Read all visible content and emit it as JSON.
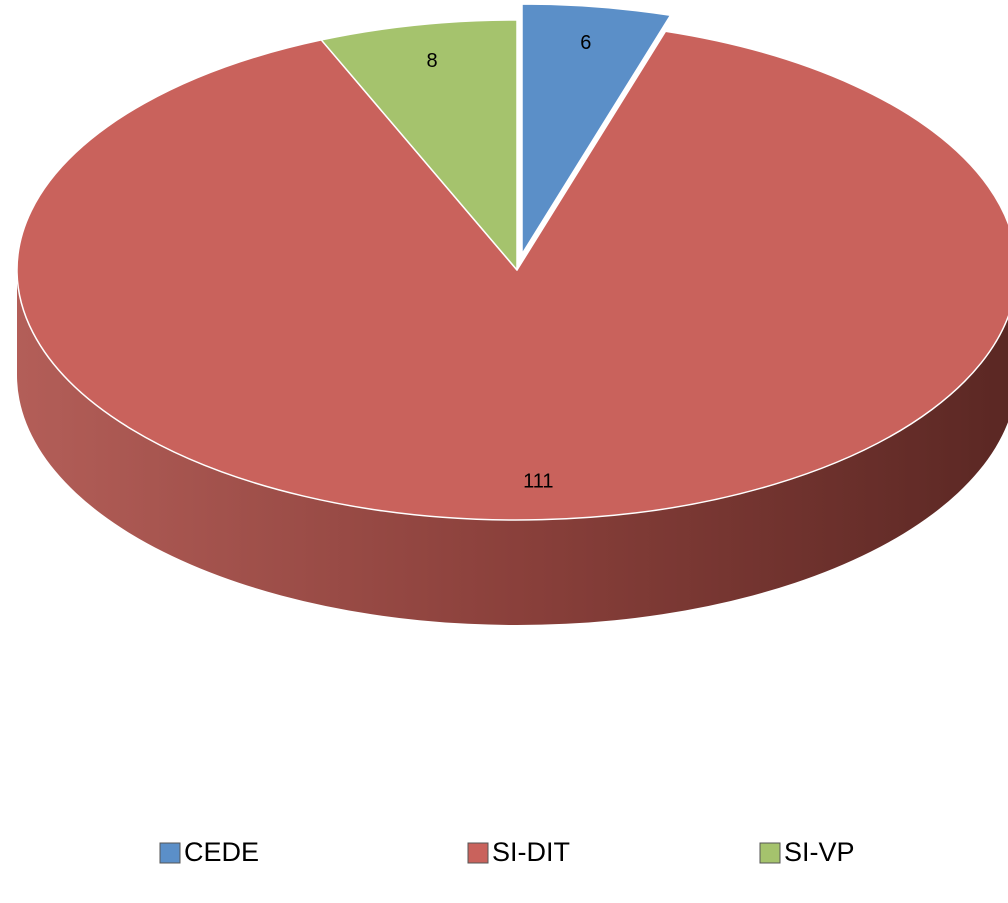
{
  "chart_data": {
    "type": "pie",
    "categories": [
      "CEDE",
      "SI-DIT",
      "SI-VP"
    ],
    "values": [
      6,
      111,
      8
    ],
    "colors": [
      "#5b8fc8",
      "#c9625c",
      "#a5c36d"
    ],
    "legend": "bottom"
  }
}
